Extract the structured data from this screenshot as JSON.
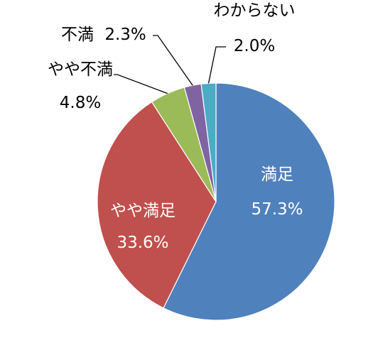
{
  "chart_data": {
    "type": "pie",
    "title": "",
    "start_angle_deg": 0,
    "direction": "clockwise",
    "slices": [
      {
        "label": "満足",
        "value": 57.3,
        "value_label": "57.3%",
        "color": "#4F81BD"
      },
      {
        "label": "やや満足",
        "value": 33.6,
        "value_label": "33.6%",
        "color": "#C0504D"
      },
      {
        "label": "やや不満",
        "value": 4.8,
        "value_label": "4.8%",
        "color": "#9BBB59"
      },
      {
        "label": "不満",
        "value": 2.3,
        "value_label": "2.3%",
        "color": "#8064A2"
      },
      {
        "label": "わからない",
        "value": 2.0,
        "value_label": "2.0%",
        "color": "#4BACC6"
      }
    ],
    "legend": "none"
  }
}
